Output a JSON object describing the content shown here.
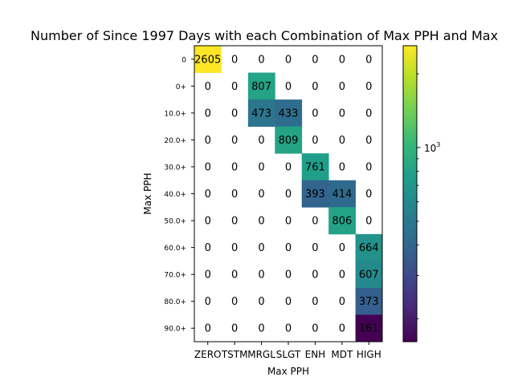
{
  "chart_data": {
    "type": "heatmap",
    "title": "Number of Since 1997 Days with each Combination of Max PPH and Max",
    "xlabel": "Max PPH",
    "ylabel": "Max PPH",
    "x_categories": [
      "ZERO",
      "TSTM",
      "MRGL",
      "SLGT",
      "ENH",
      "MDT",
      "HIGH"
    ],
    "y_categories": [
      "0",
      "0+",
      "10.0+",
      "20.0+",
      "30.0+",
      "40.0+",
      "50.0+",
      "60.0+",
      "70.0+",
      "80.0+",
      "90.0+"
    ],
    "values": [
      [
        2605,
        0,
        0,
        0,
        0,
        0,
        0
      ],
      [
        0,
        0,
        807,
        0,
        0,
        0,
        0
      ],
      [
        0,
        0,
        473,
        433,
        0,
        0,
        0
      ],
      [
        0,
        0,
        0,
        809,
        0,
        0,
        0
      ],
      [
        0,
        0,
        0,
        0,
        761,
        0,
        0
      ],
      [
        0,
        0,
        0,
        0,
        393,
        414,
        0
      ],
      [
        0,
        0,
        0,
        0,
        0,
        806,
        0
      ],
      [
        0,
        0,
        0,
        0,
        0,
        0,
        664
      ],
      [
        0,
        0,
        0,
        0,
        0,
        0,
        607
      ],
      [
        0,
        0,
        0,
        0,
        0,
        0,
        373
      ],
      [
        0,
        0,
        0,
        0,
        0,
        0,
        161
      ]
    ],
    "colormap": "viridis",
    "color_scale": "log",
    "color_range": [
      161,
      2605
    ],
    "colorbar_tick_label": "10^3",
    "zero_cells": "blank"
  }
}
